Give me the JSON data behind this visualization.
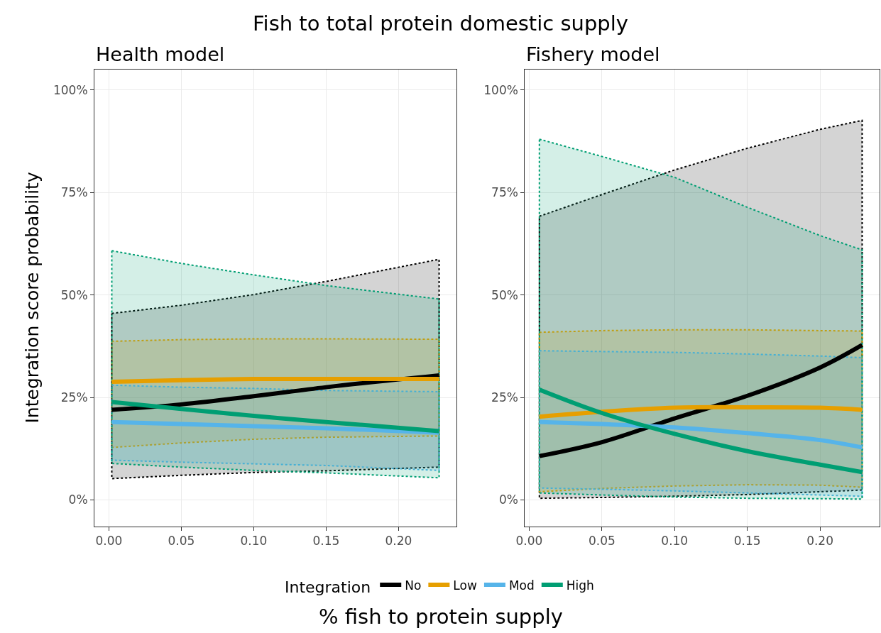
{
  "chart_data": [
    {
      "type": "line",
      "title": "Health model",
      "annotations": [
        "Fish to total protein domestic supply"
      ],
      "xlabel": "% fish to protein supply",
      "ylabel": "Integration score probability",
      "legend_title": "Integration",
      "legend": "bottom",
      "grid": true,
      "line_style": "solid",
      "x": [
        0.002,
        0.05,
        0.1,
        0.15,
        0.228
      ],
      "xlim": [
        -0.01,
        0.24
      ],
      "xticks": [
        {
          "value": 0,
          "label": "0.00"
        },
        {
          "value": 0.05,
          "label": "0.05"
        },
        {
          "value": 0.1,
          "label": "0.10"
        },
        {
          "value": 0.15,
          "label": "0.15"
        },
        {
          "value": 0.2,
          "label": "0.20"
        }
      ],
      "ylim": [
        -6.5,
        105
      ],
      "yticks": [
        {
          "value": 0,
          "label": "0%"
        },
        {
          "value": 25,
          "label": "25%"
        },
        {
          "value": 50,
          "label": "50%"
        },
        {
          "value": 75,
          "label": "75%"
        },
        {
          "value": 100,
          "label": "100%"
        }
      ],
      "series": [
        {
          "name": "No",
          "color": "#000000",
          "values": [
            22.0,
            23.3,
            25.3,
            27.5,
            30.4
          ],
          "lower": [
            5.2,
            6.0,
            6.7,
            7.1,
            8.0
          ],
          "upper": [
            45.5,
            47.5,
            50.1,
            53.3,
            58.7
          ]
        },
        {
          "name": "Low",
          "color": "#e69f00",
          "values": [
            28.8,
            29.2,
            29.5,
            29.5,
            29.5
          ],
          "lower": [
            12.8,
            13.9,
            14.8,
            15.3,
            15.6
          ],
          "upper": [
            38.7,
            39.1,
            39.3,
            39.3,
            39.2
          ]
        },
        {
          "name": "Mod",
          "color": "#56b4e9",
          "values": [
            19.0,
            18.5,
            18.0,
            17.5,
            16.4
          ],
          "lower": [
            9.7,
            9.2,
            8.8,
            8.4,
            7.2
          ],
          "upper": [
            28.0,
            27.5,
            27.2,
            26.7,
            26.4
          ]
        },
        {
          "name": "High",
          "color": "#009e73",
          "values": [
            23.9,
            22.2,
            20.5,
            19.0,
            16.8
          ],
          "lower": [
            8.9,
            8.0,
            7.2,
            6.6,
            5.4
          ],
          "upper": [
            60.8,
            57.7,
            54.9,
            52.3,
            49.0
          ]
        }
      ]
    },
    {
      "type": "line",
      "title": "Fishery model",
      "grid": true,
      "line_style": "solid",
      "x": [
        0.007,
        0.05,
        0.1,
        0.15,
        0.2,
        0.229
      ],
      "xlim": [
        -0.003,
        0.241
      ],
      "xticks": [
        {
          "value": 0,
          "label": "0.00"
        },
        {
          "value": 0.05,
          "label": "0.05"
        },
        {
          "value": 0.1,
          "label": "0.10"
        },
        {
          "value": 0.15,
          "label": "0.15"
        },
        {
          "value": 0.2,
          "label": "0.20"
        }
      ],
      "ylim": [
        -6.5,
        105
      ],
      "yticks": [
        {
          "value": 0,
          "label": "0%"
        },
        {
          "value": 25,
          "label": "25%"
        },
        {
          "value": 50,
          "label": "50%"
        },
        {
          "value": 75,
          "label": "75%"
        },
        {
          "value": 100,
          "label": "100%"
        }
      ],
      "series": [
        {
          "color": "#000000",
          "values": [
            10.7,
            14.1,
            19.9,
            25.4,
            32.3,
            37.8
          ],
          "lower": [
            0.4,
            0.6,
            0.9,
            1.3,
            2.0,
            2.4
          ],
          "upper": [
            69.2,
            74.5,
            80.5,
            85.8,
            90.4,
            92.6
          ]
        },
        {
          "color": "#e69f00",
          "values": [
            20.3,
            21.5,
            22.5,
            22.6,
            22.5,
            22.0
          ],
          "lower": [
            2.0,
            2.8,
            3.4,
            3.7,
            3.6,
            3.1
          ],
          "upper": [
            40.9,
            41.3,
            41.5,
            41.5,
            41.3,
            41.2
          ]
        },
        {
          "color": "#56b4e9",
          "values": [
            19.0,
            18.5,
            17.7,
            16.3,
            14.6,
            12.8
          ],
          "lower": [
            2.9,
            2.6,
            2.2,
            1.7,
            1.2,
            0.9
          ],
          "upper": [
            36.4,
            36.2,
            36.0,
            35.6,
            35.1,
            34.7
          ]
        },
        {
          "color": "#009e73",
          "values": [
            26.9,
            21.2,
            16.1,
            11.9,
            8.6,
            6.8
          ],
          "lower": [
            1.7,
            1.2,
            0.7,
            0.4,
            0.3,
            0.2
          ],
          "upper": [
            88.0,
            83.8,
            78.7,
            71.4,
            64.5,
            61.0
          ]
        }
      ]
    }
  ]
}
